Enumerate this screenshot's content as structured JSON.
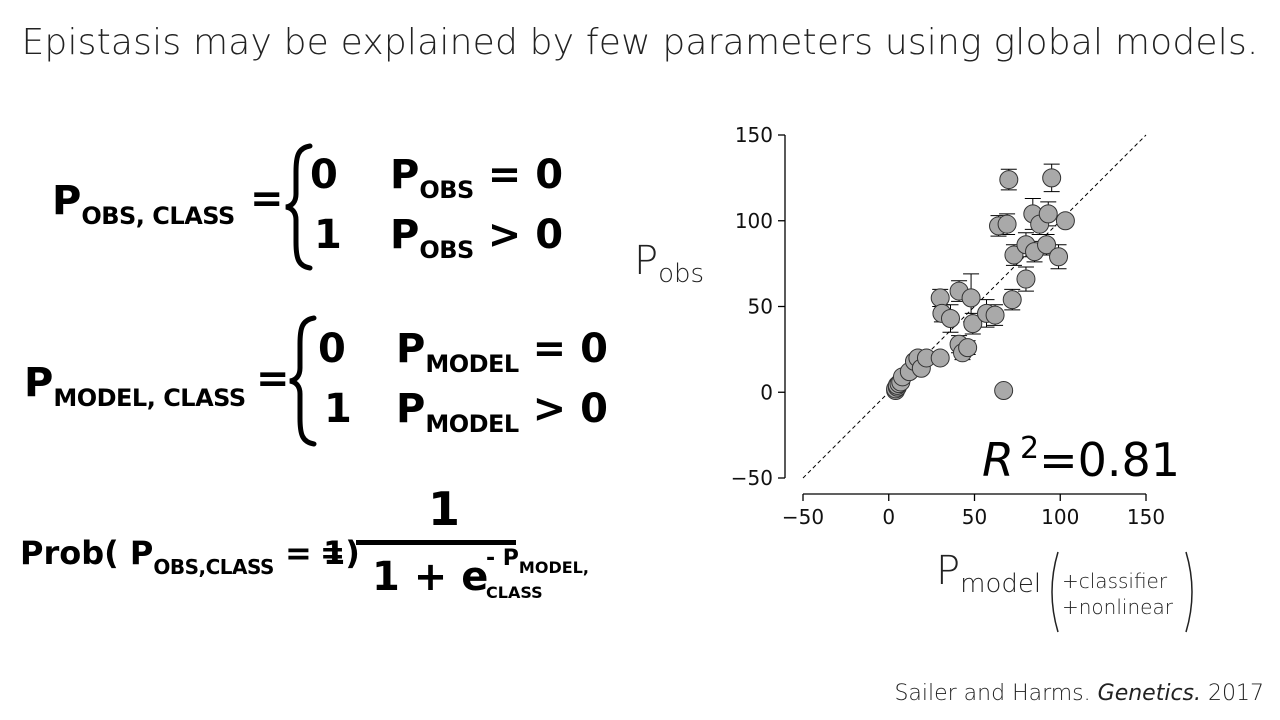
{
  "title": "Epistasis may be explained by few parameters using global models.",
  "equations": {
    "eq1": {
      "lhs_main": "P",
      "lhs_sub": "OBS, CLASS",
      "equals": "=",
      "case1_value": "0",
      "case1_cond_main": "P",
      "case1_cond_sub": "OBS",
      "case1_cond_rel": "= 0",
      "case2_value": "1",
      "case2_cond_main": "P",
      "case2_cond_sub": "OBS",
      "case2_cond_rel": "> 0"
    },
    "eq2": {
      "lhs_main": "P",
      "lhs_sub": "MODEL, CLASS",
      "equals": "=",
      "case1_value": "0",
      "case1_cond_main": "P",
      "case1_cond_sub": "MODEL",
      "case1_cond_rel": "= 0",
      "case2_value": "1",
      "case2_cond_main": "P",
      "case2_cond_sub": "MODEL",
      "case2_cond_rel": "> 0"
    },
    "eq3": {
      "lhs_prefix": "Prob( P",
      "lhs_sub": "OBS,CLASS",
      "lhs_suffix": "= 1)",
      "equals": "=",
      "numerator": "1",
      "denominator_main": "1 + e",
      "denominator_exp_prefix": "- P",
      "denominator_exp_sub": "MODEL, CLASS"
    }
  },
  "chart_data": {
    "type": "scatter",
    "title": "",
    "ylabel_main": "P",
    "ylabel_sub": "obs",
    "xlabel_main": "P",
    "xlabel_sub": "model",
    "xlabel_note": [
      "+classifier",
      "+nonlinear"
    ],
    "xlim": [
      -50,
      150
    ],
    "ylim": [
      -50,
      150
    ],
    "xticks": [
      -50,
      0,
      50,
      100,
      150
    ],
    "yticks": [
      -50,
      0,
      50,
      100,
      150
    ],
    "annotation": {
      "text_main": "R",
      "text_sup": "2",
      "text_value": "=0.81"
    },
    "reference_line": {
      "from": [
        -50,
        -50
      ],
      "to": [
        150,
        150
      ],
      "style": "dashed"
    },
    "marker_color": "#a9a9a9",
    "points": [
      {
        "x": 4,
        "y": 1,
        "err": 0
      },
      {
        "x": 4,
        "y": 2,
        "err": 0
      },
      {
        "x": 5,
        "y": 3,
        "err": 0
      },
      {
        "x": 5,
        "y": 4,
        "err": 0
      },
      {
        "x": 6,
        "y": 5,
        "err": 0
      },
      {
        "x": 7,
        "y": 6,
        "err": 0
      },
      {
        "x": 8,
        "y": 9,
        "err": 0
      },
      {
        "x": 12,
        "y": 12,
        "err": 0
      },
      {
        "x": 15,
        "y": 18,
        "err": 0
      },
      {
        "x": 17,
        "y": 20,
        "err": 0
      },
      {
        "x": 19,
        "y": 14,
        "err": 0
      },
      {
        "x": 22,
        "y": 20,
        "err": 0
      },
      {
        "x": 30,
        "y": 20,
        "err": 0
      },
      {
        "x": 30,
        "y": 55,
        "err": 5
      },
      {
        "x": 31,
        "y": 46,
        "err": 5
      },
      {
        "x": 36,
        "y": 43,
        "err": 8
      },
      {
        "x": 41,
        "y": 59,
        "err": 6
      },
      {
        "x": 41,
        "y": 28,
        "err": 5
      },
      {
        "x": 43,
        "y": 23,
        "err": 4
      },
      {
        "x": 46,
        "y": 26,
        "err": 4
      },
      {
        "x": 48,
        "y": 55,
        "err": 14
      },
      {
        "x": 49,
        "y": 40,
        "err": 6
      },
      {
        "x": 57,
        "y": 46,
        "err": 8
      },
      {
        "x": 62,
        "y": 45,
        "err": 6
      },
      {
        "x": 67,
        "y": 1,
        "err": 0
      },
      {
        "x": 64,
        "y": 97,
        "err": 6
      },
      {
        "x": 69,
        "y": 98,
        "err": 6
      },
      {
        "x": 70,
        "y": 124,
        "err": 6
      },
      {
        "x": 73,
        "y": 80,
        "err": 6
      },
      {
        "x": 72,
        "y": 54,
        "err": 6
      },
      {
        "x": 80,
        "y": 66,
        "err": 7
      },
      {
        "x": 80,
        "y": 86,
        "err": 7
      },
      {
        "x": 84,
        "y": 104,
        "err": 9
      },
      {
        "x": 85,
        "y": 82,
        "err": 6
      },
      {
        "x": 88,
        "y": 98,
        "err": 6
      },
      {
        "x": 92,
        "y": 86,
        "err": 6
      },
      {
        "x": 93,
        "y": 104,
        "err": 7
      },
      {
        "x": 95,
        "y": 125,
        "err": 8
      },
      {
        "x": 99,
        "y": 79,
        "err": 7
      },
      {
        "x": 103,
        "y": 100,
        "err": 0
      }
    ]
  },
  "citation": {
    "authors": "Sailer and Harms.",
    "journal": "Genetics.",
    "year": "2017"
  }
}
